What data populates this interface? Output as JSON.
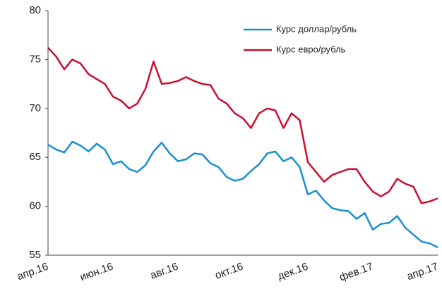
{
  "chart_data": {
    "type": "line",
    "categories": [
      "апр.16",
      null,
      null,
      null,
      null,
      null,
      null,
      null,
      "июн.16",
      null,
      null,
      null,
      null,
      null,
      null,
      null,
      "авг.16",
      null,
      null,
      null,
      null,
      null,
      null,
      null,
      "окт.16",
      null,
      null,
      null,
      null,
      null,
      null,
      null,
      "дек.16",
      null,
      null,
      null,
      null,
      null,
      null,
      null,
      "фев.17",
      null,
      null,
      null,
      null,
      null,
      null,
      null,
      "апр.17"
    ],
    "series": [
      {
        "name": "Курс доллар/рубль",
        "color": "#1a8fd0",
        "values": [
          66.3,
          65.8,
          65.5,
          66.6,
          66.2,
          65.6,
          66.4,
          65.8,
          64.3,
          64.6,
          63.8,
          63.5,
          64.2,
          65.6,
          66.5,
          65.4,
          64.6,
          64.8,
          65.4,
          65.3,
          64.4,
          64.0,
          63.0,
          62.6,
          62.8,
          63.6,
          64.3,
          65.4,
          65.6,
          64.6,
          65.0,
          64.0,
          61.2,
          61.6,
          60.6,
          59.8,
          59.6,
          59.5,
          58.7,
          59.3,
          57.6,
          58.2,
          58.3,
          59.0,
          57.8,
          57.1,
          56.4,
          56.2,
          55.8
        ]
      },
      {
        "name": "Курс евро/рубль",
        "color": "#c8102e",
        "values": [
          76.2,
          75.3,
          74.0,
          75.0,
          74.6,
          73.5,
          73.0,
          72.5,
          71.2,
          70.8,
          70.0,
          70.5,
          72.0,
          74.8,
          72.5,
          72.6,
          72.8,
          73.2,
          72.8,
          72.5,
          72.4,
          71.0,
          70.5,
          69.5,
          69.0,
          68.0,
          69.5,
          70.0,
          69.8,
          68.0,
          69.5,
          68.8,
          64.5,
          63.5,
          62.5,
          63.2,
          63.5,
          63.8,
          63.8,
          62.5,
          61.5,
          61.0,
          61.5,
          62.8,
          62.3,
          62.0,
          60.3,
          60.5,
          60.8
        ]
      }
    ],
    "ylim": [
      55,
      80
    ],
    "yticks": [
      55,
      60,
      65,
      70,
      75,
      80
    ],
    "grid": false,
    "legend": "top-right"
  }
}
